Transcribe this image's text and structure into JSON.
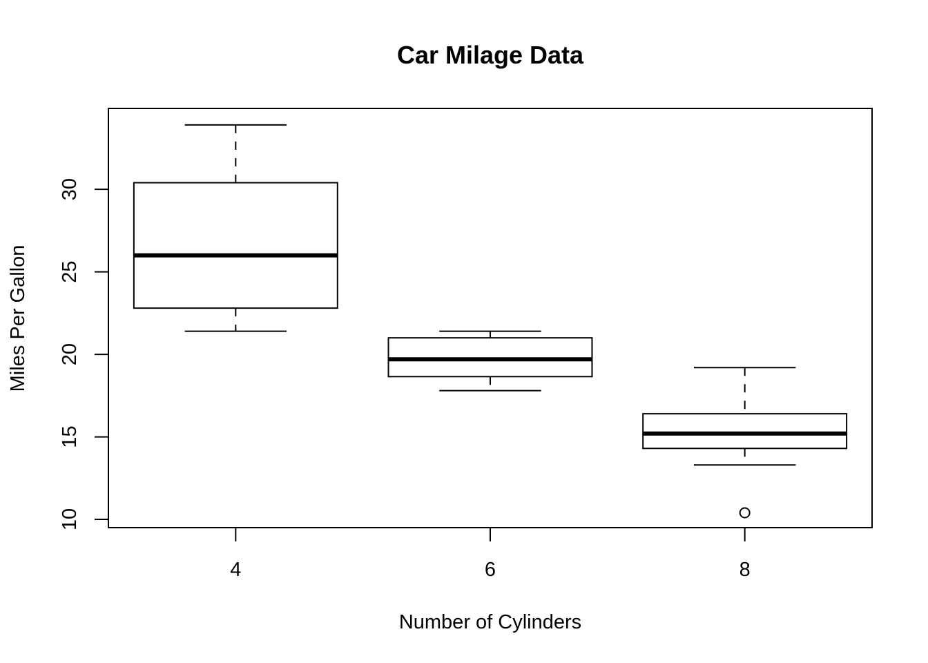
{
  "chart_data": {
    "type": "boxplot",
    "title": "Car Milage Data",
    "xlabel": "Number of Cylinders",
    "ylabel": "Miles Per Gallon",
    "categories": [
      "4",
      "6",
      "8"
    ],
    "boxes": [
      {
        "category": "4",
        "whisker_low": 21.4,
        "q1": 22.8,
        "median": 26.0,
        "q3": 30.4,
        "whisker_high": 33.9,
        "outliers": []
      },
      {
        "category": "6",
        "whisker_low": 17.8,
        "q1": 18.65,
        "median": 19.7,
        "q3": 21.0,
        "whisker_high": 21.4,
        "outliers": []
      },
      {
        "category": "8",
        "whisker_low": 13.3,
        "q1": 14.3,
        "median": 15.2,
        "q3": 16.4,
        "whisker_high": 19.2,
        "outliers": [
          10.4
        ]
      }
    ],
    "yticks": [
      10,
      15,
      20,
      25,
      30
    ],
    "ylim": [
      9.5,
      34.9
    ],
    "xlim": [
      0.5,
      3.5
    ],
    "grid": false,
    "legend": false
  }
}
